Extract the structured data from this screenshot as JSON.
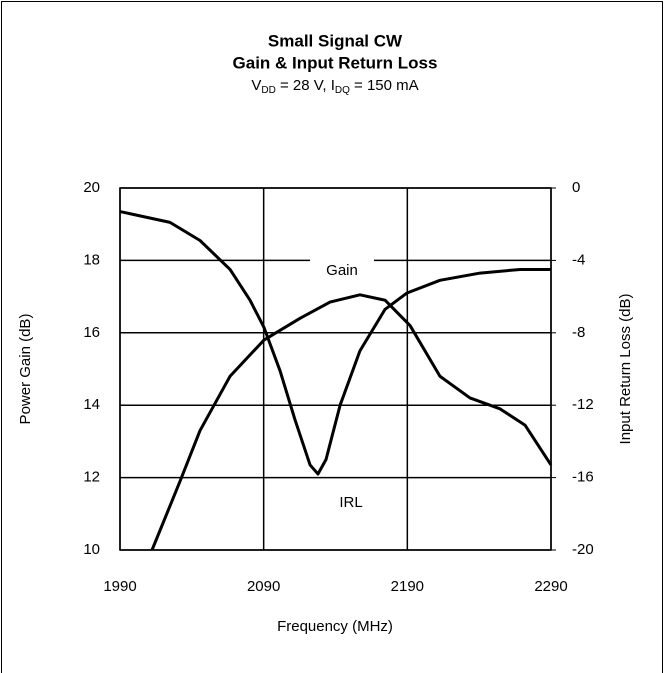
{
  "chart_data": {
    "type": "line",
    "title": [
      "Small Signal CW",
      "Gain & Input Return Loss"
    ],
    "subtitle": [
      "V",
      "DD",
      " = 28 V, I",
      "DQ",
      " = 150 mA"
    ],
    "xlabel": "Frequency (MHz)",
    "ylabel": "Power Gain (dB)",
    "y2label": "Input Return Loss (dB)",
    "xlim": [
      1990,
      2290
    ],
    "xticks": [
      1990,
      2090,
      2190,
      2290
    ],
    "ylim": [
      10,
      20
    ],
    "yticks": [
      10,
      12,
      14,
      16,
      18,
      20
    ],
    "y2lim": [
      -20,
      0
    ],
    "y2ticks": [
      -20,
      -16,
      -12,
      -8,
      -4,
      0
    ],
    "grid": true,
    "annotations": [
      "Gain",
      "IRL"
    ],
    "series": [
      {
        "name": "Gain",
        "color": "#000000",
        "x": [
          2012.3,
          2031.8,
          2045.7,
          2066.6,
          2090.2,
          2115.3,
          2136.2,
          2157.0,
          2174.5,
          2191.9,
          2212.7,
          2233.6,
          2254.5,
          2271.9,
          2290
        ],
        "values": [
          10.0,
          11.9,
          13.3,
          14.8,
          15.8,
          16.4,
          16.85,
          17.05,
          16.9,
          16.2,
          14.8,
          14.2,
          13.9,
          13.45,
          12.35
        ]
      },
      {
        "name": "IRL",
        "color": "#000000",
        "axis": "y2",
        "x": [
          1990,
          2024.8,
          2045.7,
          2066.6,
          2080.5,
          2090.2,
          2101.4,
          2111.8,
          2122.3,
          2127.8,
          2133.4,
          2143.2,
          2157,
          2174.5,
          2189.8,
          2212.7,
          2240.6,
          2268.5,
          2290
        ],
        "values": [
          -1.3,
          -1.9,
          -2.9,
          -4.5,
          -6.2,
          -7.7,
          -10.1,
          -12.8,
          -15.3,
          -15.8,
          -15.0,
          -12.0,
          -9.0,
          -6.7,
          -5.8,
          -5.1,
          -4.7,
          -4.5,
          -4.5
        ]
      }
    ]
  }
}
